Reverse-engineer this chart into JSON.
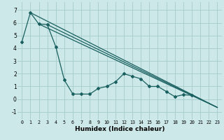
{
  "xlabel": "Humidex (Indice chaleur)",
  "bg_color": "#cce8e8",
  "grid_color": "#aacece",
  "line_color": "#1a6060",
  "xlim": [
    -0.5,
    23.5
  ],
  "ylim": [
    -1.6,
    7.6
  ],
  "yticks": [
    -1,
    0,
    1,
    2,
    3,
    4,
    5,
    6,
    7
  ],
  "xticks": [
    0,
    1,
    2,
    3,
    4,
    5,
    6,
    7,
    8,
    9,
    10,
    11,
    12,
    13,
    14,
    15,
    16,
    17,
    18,
    19,
    20,
    21,
    22,
    23
  ],
  "main_x": [
    0,
    1,
    2,
    3,
    4,
    5,
    6,
    7,
    8,
    9,
    10,
    11,
    12,
    13,
    14,
    15,
    16,
    17,
    18,
    19,
    20
  ],
  "main_y": [
    4.5,
    6.8,
    5.9,
    5.85,
    4.1,
    1.5,
    0.4,
    0.4,
    0.4,
    0.85,
    1.0,
    1.35,
    2.0,
    1.8,
    1.6,
    1.0,
    1.0,
    0.6,
    0.2,
    0.35,
    0.3
  ],
  "diag_lines": [
    {
      "x0": 1,
      "y0": 6.8,
      "x1": 23,
      "y1": -0.65
    },
    {
      "x0": 2,
      "y0": 5.9,
      "x1": 23,
      "y1": -0.65
    },
    {
      "x0": 3,
      "y0": 5.85,
      "x1": 23,
      "y1": -0.65
    }
  ]
}
